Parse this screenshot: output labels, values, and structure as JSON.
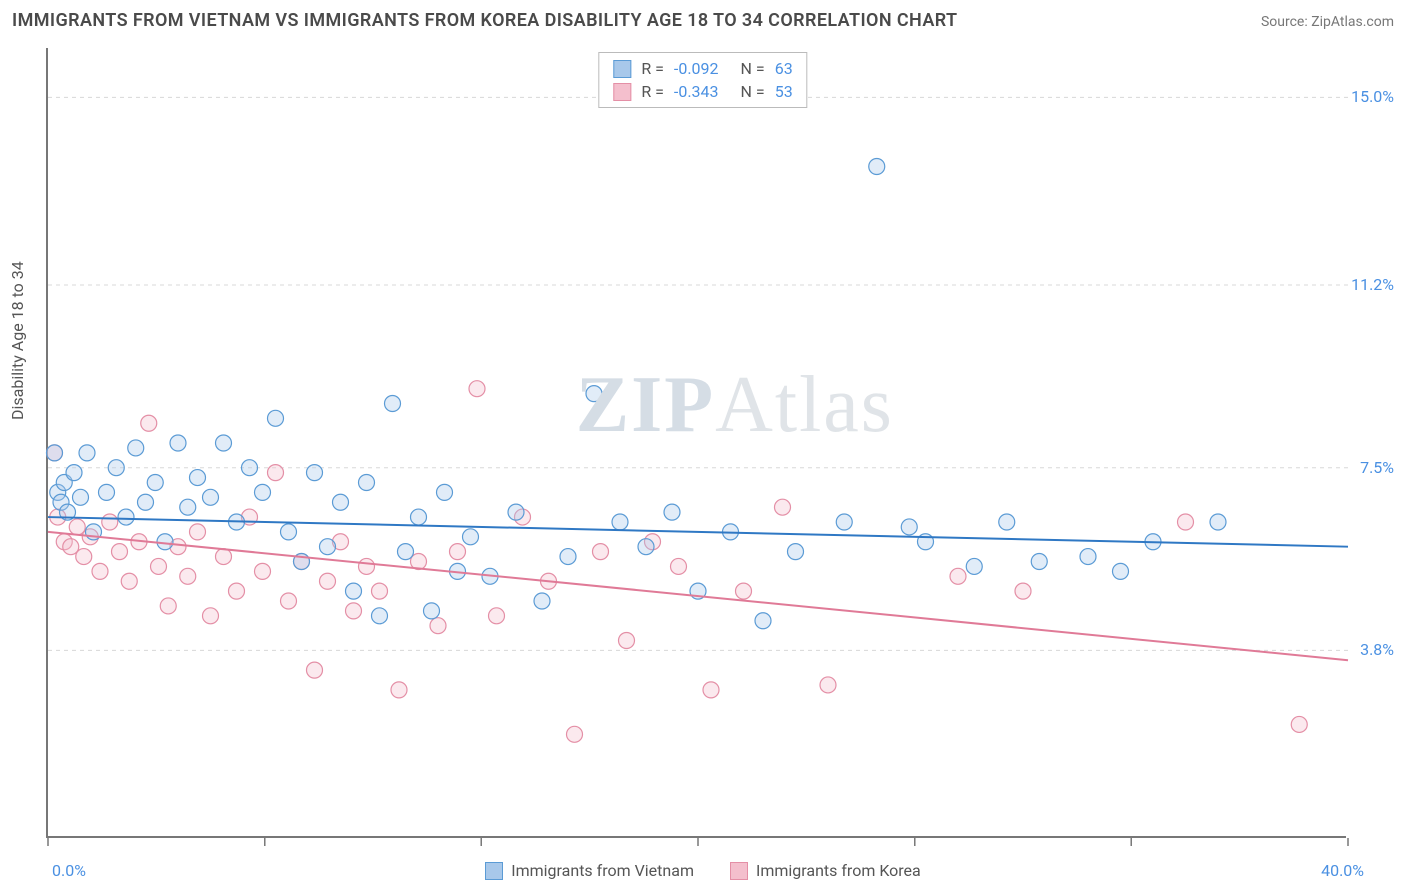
{
  "title": "IMMIGRANTS FROM VIETNAM VS IMMIGRANTS FROM KOREA DISABILITY AGE 18 TO 34 CORRELATION CHART",
  "source_label": "Source: ZipAtlas.com",
  "ylabel": "Disability Age 18 to 34",
  "watermark_a": "ZIP",
  "watermark_b": "Atlas",
  "chart": {
    "type": "scatter",
    "xlim": [
      0,
      40
    ],
    "ylim": [
      0,
      16
    ],
    "x_min_label": "0.0%",
    "x_max_label": "40.0%",
    "y_ticks": [
      {
        "v": 3.8,
        "label": "3.8%"
      },
      {
        "v": 7.5,
        "label": "7.5%"
      },
      {
        "v": 11.2,
        "label": "11.2%"
      },
      {
        "v": 15.0,
        "label": "15.0%"
      }
    ],
    "background_color": "#ffffff",
    "grid_color": "#d8d8d8",
    "grid_dash": "4,4",
    "axis_color": "#777777",
    "xtick_positions": [
      0,
      6.67,
      13.33,
      20,
      26.67,
      33.33,
      40
    ],
    "marker_radius": 8,
    "marker_stroke_width": 1.2,
    "marker_fill_opacity": 0.35,
    "line_width": 2,
    "series": [
      {
        "name": "Immigrants from Vietnam",
        "key": "vietnam",
        "color_stroke": "#5b9bd5",
        "color_fill": "#a8c8ea",
        "line_color": "#2f78c4",
        "R": "-0.092",
        "N": "63",
        "trend": {
          "x1": 0,
          "y1": 6.5,
          "x2": 40,
          "y2": 5.9
        },
        "points": [
          [
            0.2,
            7.8
          ],
          [
            0.3,
            7.0
          ],
          [
            0.4,
            6.8
          ],
          [
            0.5,
            7.2
          ],
          [
            0.6,
            6.6
          ],
          [
            0.8,
            7.4
          ],
          [
            1.0,
            6.9
          ],
          [
            1.2,
            7.8
          ],
          [
            1.4,
            6.2
          ],
          [
            1.8,
            7.0
          ],
          [
            2.1,
            7.5
          ],
          [
            2.4,
            6.5
          ],
          [
            2.7,
            7.9
          ],
          [
            3.0,
            6.8
          ],
          [
            3.3,
            7.2
          ],
          [
            3.6,
            6.0
          ],
          [
            4.0,
            8.0
          ],
          [
            4.3,
            6.7
          ],
          [
            4.6,
            7.3
          ],
          [
            5.0,
            6.9
          ],
          [
            5.4,
            8.0
          ],
          [
            5.8,
            6.4
          ],
          [
            6.2,
            7.5
          ],
          [
            6.6,
            7.0
          ],
          [
            7.0,
            8.5
          ],
          [
            7.4,
            6.2
          ],
          [
            7.8,
            5.6
          ],
          [
            8.2,
            7.4
          ],
          [
            8.6,
            5.9
          ],
          [
            9.0,
            6.8
          ],
          [
            9.4,
            5.0
          ],
          [
            9.8,
            7.2
          ],
          [
            10.2,
            4.5
          ],
          [
            10.6,
            8.8
          ],
          [
            11.0,
            5.8
          ],
          [
            11.4,
            6.5
          ],
          [
            11.8,
            4.6
          ],
          [
            12.2,
            7.0
          ],
          [
            12.6,
            5.4
          ],
          [
            13.0,
            6.1
          ],
          [
            13.6,
            5.3
          ],
          [
            14.4,
            6.6
          ],
          [
            15.2,
            4.8
          ],
          [
            16.0,
            5.7
          ],
          [
            16.8,
            9.0
          ],
          [
            17.6,
            6.4
          ],
          [
            18.4,
            5.9
          ],
          [
            19.2,
            6.6
          ],
          [
            20.0,
            5.0
          ],
          [
            21.0,
            6.2
          ],
          [
            22.0,
            4.4
          ],
          [
            23.0,
            5.8
          ],
          [
            24.5,
            6.4
          ],
          [
            25.5,
            13.6
          ],
          [
            26.5,
            6.3
          ],
          [
            27.0,
            6.0
          ],
          [
            28.5,
            5.5
          ],
          [
            29.5,
            6.4
          ],
          [
            30.5,
            5.6
          ],
          [
            32.0,
            5.7
          ],
          [
            33.0,
            5.4
          ],
          [
            34.0,
            6.0
          ],
          [
            36.0,
            6.4
          ]
        ]
      },
      {
        "name": "Immigrants from Korea",
        "key": "korea",
        "color_stroke": "#e48fa6",
        "color_fill": "#f4bfcd",
        "line_color": "#e07a97",
        "R": "-0.343",
        "N": "53",
        "trend": {
          "x1": 0,
          "y1": 6.2,
          "x2": 40,
          "y2": 3.6
        },
        "points": [
          [
            0.2,
            7.8
          ],
          [
            0.3,
            6.5
          ],
          [
            0.5,
            6.0
          ],
          [
            0.7,
            5.9
          ],
          [
            0.9,
            6.3
          ],
          [
            1.1,
            5.7
          ],
          [
            1.3,
            6.1
          ],
          [
            1.6,
            5.4
          ],
          [
            1.9,
            6.4
          ],
          [
            2.2,
            5.8
          ],
          [
            2.5,
            5.2
          ],
          [
            2.8,
            6.0
          ],
          [
            3.1,
            8.4
          ],
          [
            3.4,
            5.5
          ],
          [
            3.7,
            4.7
          ],
          [
            4.0,
            5.9
          ],
          [
            4.3,
            5.3
          ],
          [
            4.6,
            6.2
          ],
          [
            5.0,
            4.5
          ],
          [
            5.4,
            5.7
          ],
          [
            5.8,
            5.0
          ],
          [
            6.2,
            6.5
          ],
          [
            6.6,
            5.4
          ],
          [
            7.0,
            7.4
          ],
          [
            7.4,
            4.8
          ],
          [
            7.8,
            5.6
          ],
          [
            8.2,
            3.4
          ],
          [
            8.6,
            5.2
          ],
          [
            9.0,
            6.0
          ],
          [
            9.4,
            4.6
          ],
          [
            9.8,
            5.5
          ],
          [
            10.2,
            5.0
          ],
          [
            10.8,
            3.0
          ],
          [
            11.4,
            5.6
          ],
          [
            12.0,
            4.3
          ],
          [
            12.6,
            5.8
          ],
          [
            13.2,
            9.1
          ],
          [
            13.8,
            4.5
          ],
          [
            14.6,
            6.5
          ],
          [
            15.4,
            5.2
          ],
          [
            16.2,
            2.1
          ],
          [
            17.0,
            5.8
          ],
          [
            17.8,
            4.0
          ],
          [
            18.6,
            6.0
          ],
          [
            19.4,
            5.5
          ],
          [
            20.4,
            3.0
          ],
          [
            21.4,
            5.0
          ],
          [
            22.6,
            6.7
          ],
          [
            24.0,
            3.1
          ],
          [
            28.0,
            5.3
          ],
          [
            30.0,
            5.0
          ],
          [
            35.0,
            6.4
          ],
          [
            38.5,
            2.3
          ]
        ]
      }
    ]
  }
}
